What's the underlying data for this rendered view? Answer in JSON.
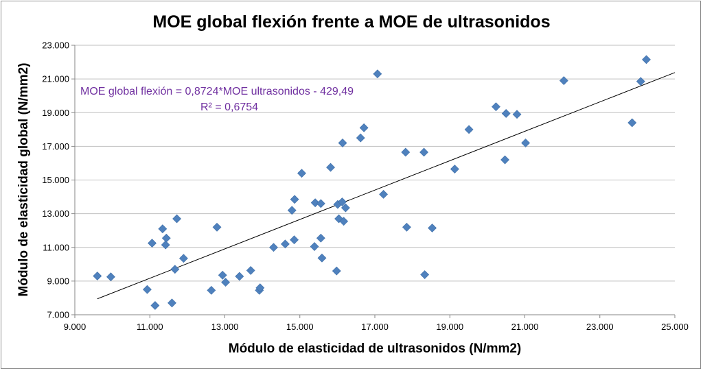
{
  "chart_data": {
    "type": "scatter",
    "title": "MOE  global flexión frente a MOE de ultrasonidos",
    "xlabel": "Módulo de elasticidad de ultrasonidos (N/mm2)",
    "ylabel": "Módulo de elasticidad global  (N/mm2)",
    "xlim": [
      9000,
      25000
    ],
    "ylim": [
      7000,
      23000
    ],
    "x_ticks": [
      "9.000",
      "11.000",
      "13.000",
      "15.000",
      "17.000",
      "19.000",
      "21.000",
      "23.000",
      "25.000"
    ],
    "y_ticks": [
      "7.000",
      "9.000",
      "11.000",
      "13.000",
      "15.000",
      "17.000",
      "19.000",
      "21.000",
      "23.000"
    ],
    "grid": "horizontal",
    "marker": "diamond",
    "colors": {
      "points": "#4f81bd",
      "trendline": "#000000",
      "annotation": "#7030a0",
      "grid": "#bfbfbf"
    },
    "trendline": {
      "slope": 0.8724,
      "intercept": -429.49,
      "x_range": [
        9600,
        25000
      ]
    },
    "annotations": {
      "equation": "MOE global flexión = 0,8724*MOE ultrasonidos - 429,49",
      "r_squared": "R² = 0,6754"
    },
    "series": [
      {
        "points": [
          [
            9600,
            9300
          ],
          [
            9960,
            9250
          ],
          [
            10930,
            8500
          ],
          [
            11060,
            11250
          ],
          [
            11140,
            7550
          ],
          [
            11340,
            12100
          ],
          [
            11420,
            11150
          ],
          [
            11440,
            11550
          ],
          [
            11590,
            7700
          ],
          [
            11670,
            9700
          ],
          [
            11720,
            12700
          ],
          [
            11900,
            10350
          ],
          [
            12640,
            8450
          ],
          [
            12790,
            12200
          ],
          [
            12940,
            9350
          ],
          [
            13020,
            8930
          ],
          [
            13390,
            9280
          ],
          [
            13690,
            9630
          ],
          [
            13920,
            8450
          ],
          [
            13940,
            8600
          ],
          [
            14300,
            11000
          ],
          [
            14610,
            11200
          ],
          [
            14790,
            13200
          ],
          [
            14850,
            11450
          ],
          [
            14860,
            13850
          ],
          [
            15050,
            15400
          ],
          [
            15390,
            11050
          ],
          [
            15410,
            13650
          ],
          [
            15560,
            13600
          ],
          [
            15560,
            11550
          ],
          [
            15590,
            10370
          ],
          [
            15820,
            15750
          ],
          [
            15980,
            9600
          ],
          [
            16010,
            13550
          ],
          [
            16040,
            12700
          ],
          [
            16130,
            13700
          ],
          [
            16140,
            17200
          ],
          [
            16170,
            12550
          ],
          [
            16220,
            13350
          ],
          [
            16620,
            17500
          ],
          [
            16710,
            18100
          ],
          [
            17070,
            21300
          ],
          [
            17230,
            14150
          ],
          [
            17820,
            16650
          ],
          [
            17850,
            12200
          ],
          [
            18310,
            16650
          ],
          [
            18330,
            9380
          ],
          [
            18530,
            12150
          ],
          [
            19130,
            15650
          ],
          [
            19510,
            18000
          ],
          [
            20230,
            19350
          ],
          [
            20470,
            16200
          ],
          [
            20500,
            18950
          ],
          [
            20790,
            18900
          ],
          [
            21020,
            17200
          ],
          [
            22040,
            20900
          ],
          [
            23860,
            18400
          ],
          [
            24090,
            20850
          ],
          [
            24240,
            22150
          ]
        ]
      }
    ]
  }
}
